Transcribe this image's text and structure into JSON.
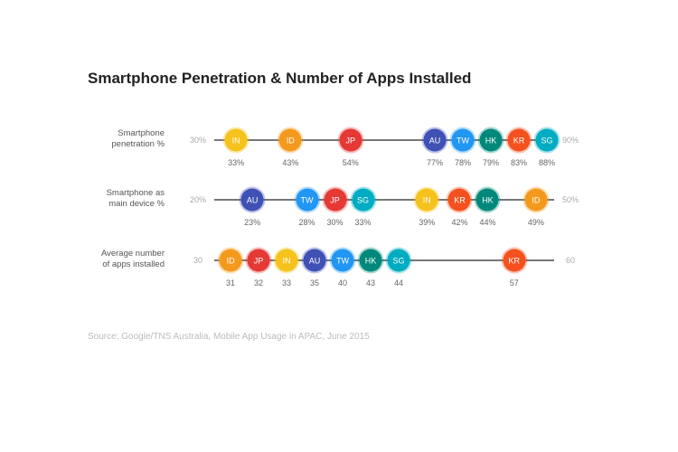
{
  "chart_data": {
    "type": "scatter",
    "title": "Smartphone Penetration & Number of Apps Installed",
    "source": "Source: Google/TNS Australia, Mobile App Usage in APAC, June 2015",
    "colors": {
      "IN": "#F6C21C",
      "ID": "#F39A1E",
      "JP": "#E53935",
      "AU": "#3F51B5",
      "TW": "#2196F3",
      "HK": "#00897B",
      "KR": "#F4511E",
      "SG": "#00ACC1"
    },
    "rows": [
      {
        "label_lines": [
          "Smartphone",
          "penetration %"
        ],
        "min": 30,
        "max": 90,
        "min_label": "30%",
        "max_label": "90%",
        "suffix": "%",
        "points": [
          {
            "code": "IN",
            "value": 33
          },
          {
            "code": "ID",
            "value": 43
          },
          {
            "code": "JP",
            "value": 54
          },
          {
            "code": "AU",
            "value": 77
          },
          {
            "code": "TW",
            "value": 78
          },
          {
            "code": "HK",
            "value": 79
          },
          {
            "code": "KR",
            "value": 83
          },
          {
            "code": "SG",
            "value": 88
          }
        ]
      },
      {
        "label_lines": [
          "Smartphone as",
          "main device %"
        ],
        "min": 20,
        "max": 50,
        "min_label": "20%",
        "max_label": "50%",
        "suffix": "%",
        "points": [
          {
            "code": "AU",
            "value": 23
          },
          {
            "code": "TW",
            "value": 28
          },
          {
            "code": "JP",
            "value": 30
          },
          {
            "code": "SG",
            "value": 33
          },
          {
            "code": "IN",
            "value": 39
          },
          {
            "code": "KR",
            "value": 42
          },
          {
            "code": "HK",
            "value": 44
          },
          {
            "code": "ID",
            "value": 49
          }
        ]
      },
      {
        "label_lines": [
          "Average number",
          "of apps installed"
        ],
        "min": 30,
        "max": 60,
        "min_label": "30",
        "max_label": "60",
        "suffix": "",
        "points": [
          {
            "code": "ID",
            "value": 31
          },
          {
            "code": "JP",
            "value": 32
          },
          {
            "code": "IN",
            "value": 33
          },
          {
            "code": "AU",
            "value": 35
          },
          {
            "code": "TW",
            "value": 40
          },
          {
            "code": "HK",
            "value": 43
          },
          {
            "code": "SG",
            "value": 44
          },
          {
            "code": "KR",
            "value": 57
          }
        ]
      }
    ]
  }
}
